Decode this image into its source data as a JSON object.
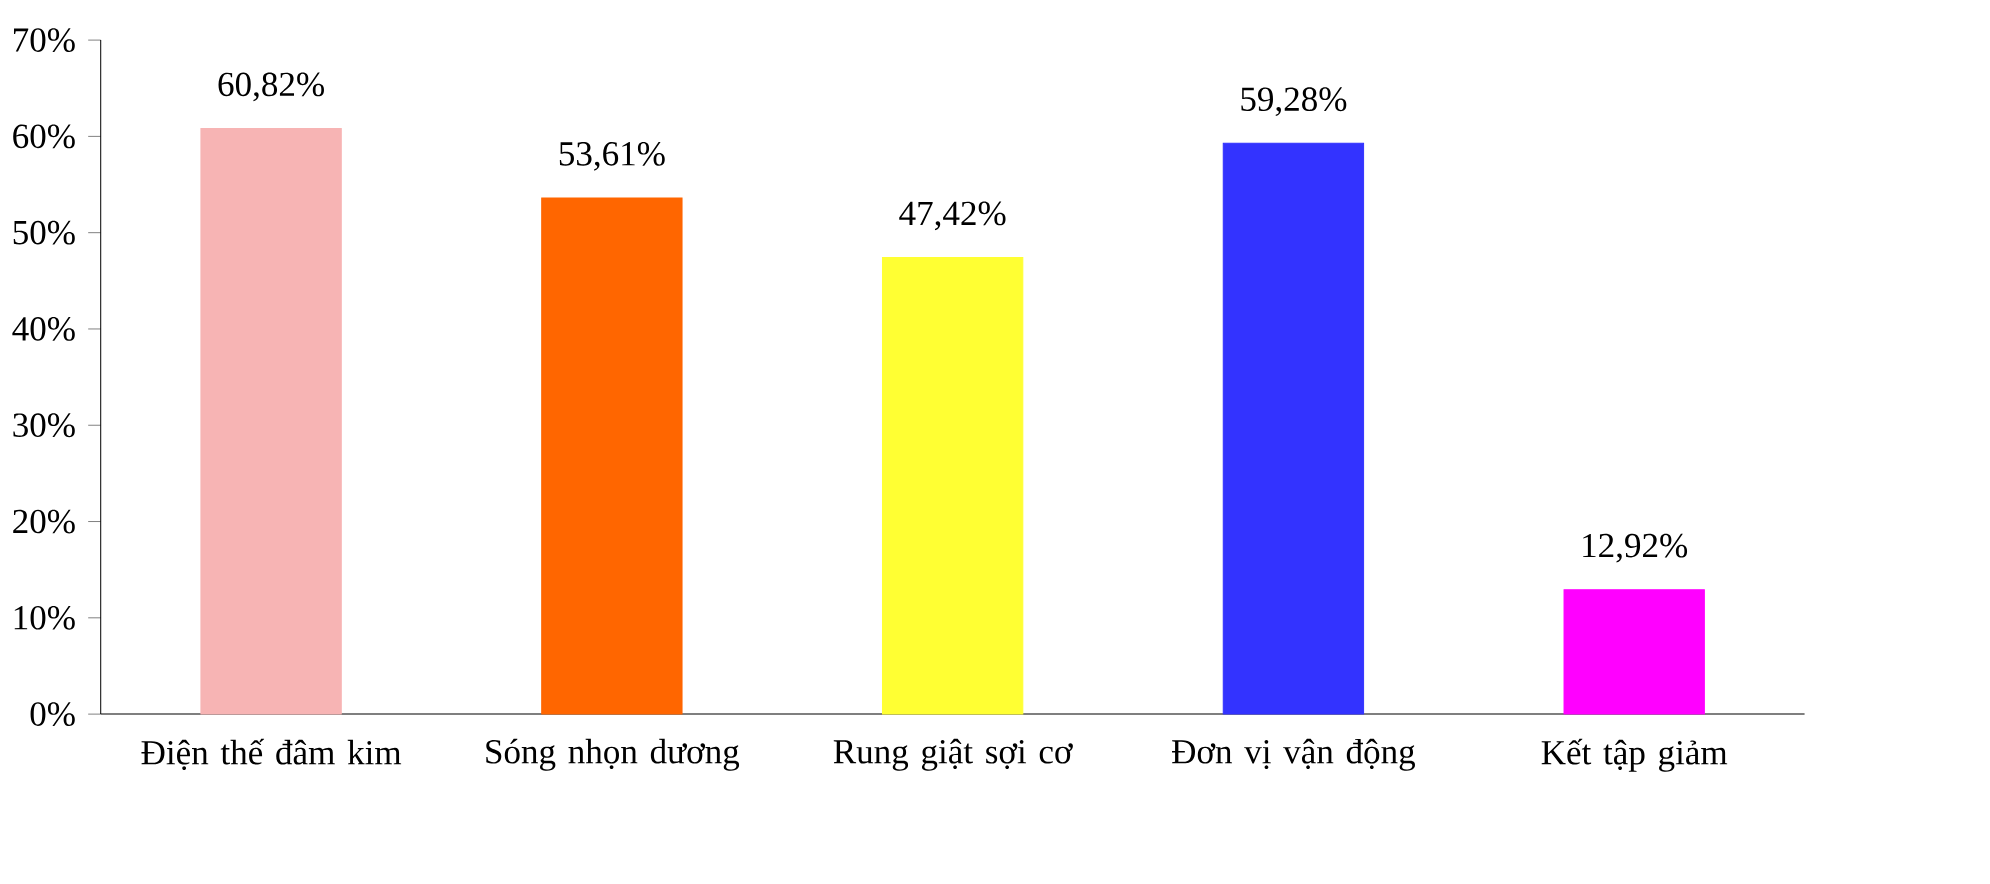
{
  "chart_data": {
    "type": "bar",
    "categories": [
      "Điện thế đâm kim",
      "Sóng nhọn dương",
      "Rung giật sợi cơ",
      "Đơn vị vận động",
      "Kết tập giảm"
    ],
    "values": [
      60.82,
      53.61,
      47.42,
      59.28,
      12.92
    ],
    "value_labels": [
      "60,82%",
      "53,61%",
      "47,42%",
      "59,28%",
      "12,92%"
    ],
    "colors": [
      "#f7b4b4",
      "#ff6600",
      "#ffff33",
      "#3333ff",
      "#ff00ff"
    ],
    "ylim": [
      0,
      70
    ],
    "yticks": [
      {
        "value": 0,
        "label": "0%"
      },
      {
        "value": 10,
        "label": "10%"
      },
      {
        "value": 20,
        "label": "20%"
      },
      {
        "value": 30,
        "label": "30%"
      },
      {
        "value": 40,
        "label": "40%"
      },
      {
        "value": 50,
        "label": "50%"
      },
      {
        "value": 60,
        "label": "60%"
      },
      {
        "value": 70,
        "label": "70%"
      }
    ]
  }
}
